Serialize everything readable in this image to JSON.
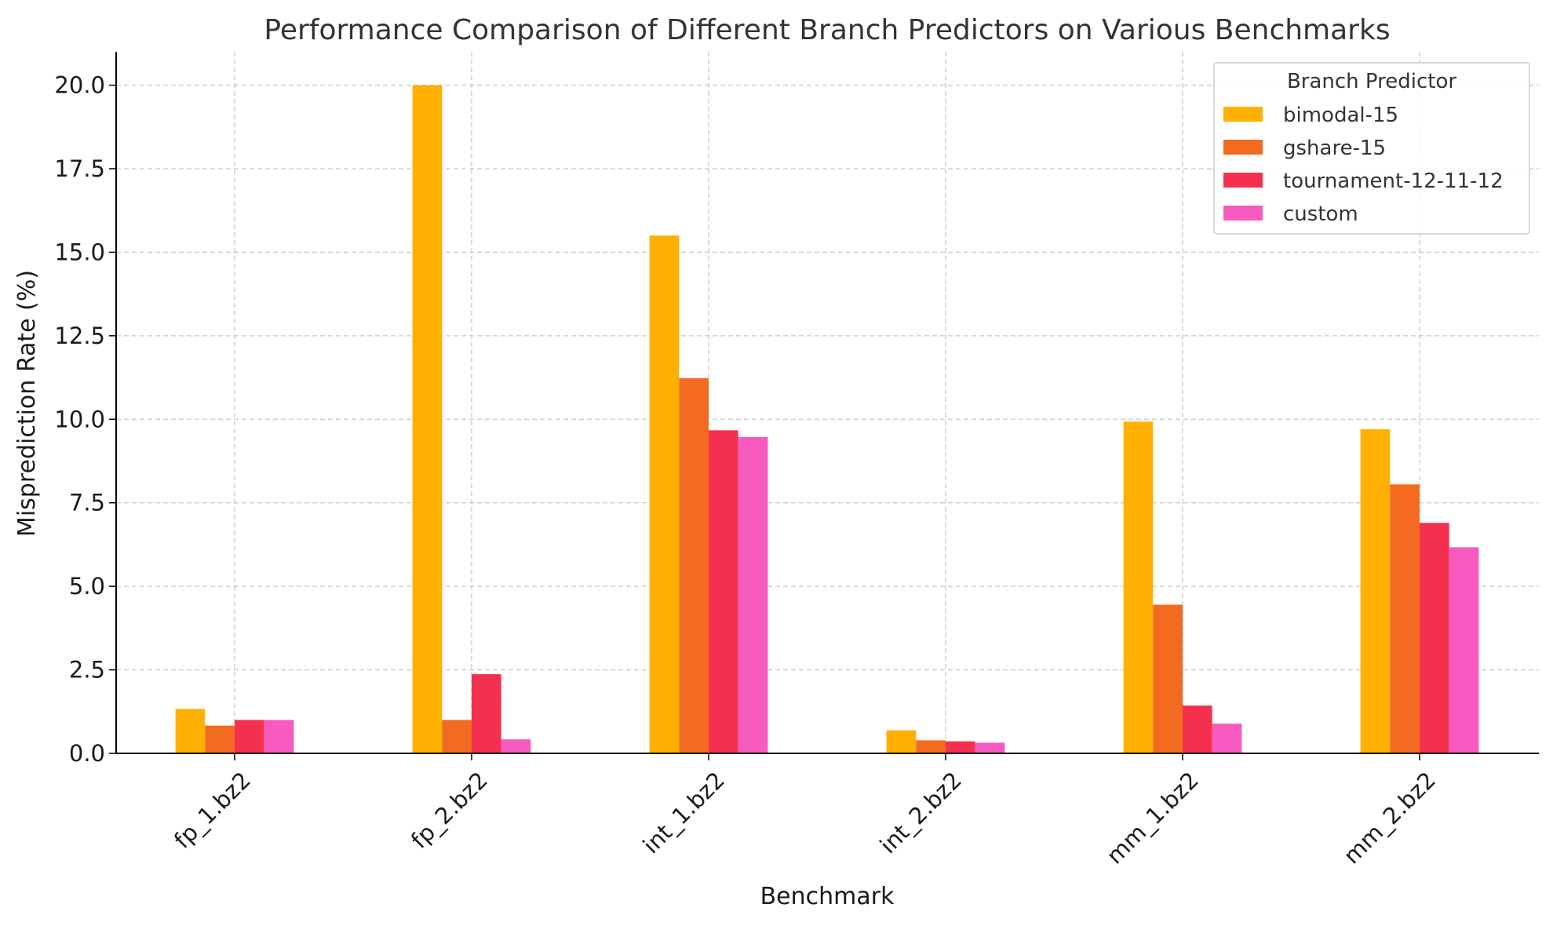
{
  "chart_data": {
    "type": "bar",
    "title": "Performance Comparison of Different Branch Predictors on Various Benchmarks",
    "xlabel": "Benchmark",
    "ylabel": "Misprediction Rate (%)",
    "categories": [
      "fp_1.bz2",
      "fp_2.bz2",
      "int_1.bz2",
      "int_2.bz2",
      "mm_1.bz2",
      "mm_2.bz2"
    ],
    "ylim": [
      0,
      21
    ],
    "yticks": [
      "0.0",
      "2.5",
      "5.0",
      "7.5",
      "10.0",
      "12.5",
      "15.0",
      "17.5",
      "20.0"
    ],
    "grid": true,
    "legend": {
      "title": "Branch Predictor",
      "placement": "top-right"
    },
    "series": [
      {
        "name": "bimodal-15",
        "color": "#FFB000",
        "values": [
          1.33,
          20.0,
          15.5,
          0.69,
          9.93,
          9.7
        ]
      },
      {
        "name": "gshare-15",
        "color": "#F26B21",
        "values": [
          0.83,
          1.0,
          11.23,
          0.39,
          4.45,
          8.05
        ]
      },
      {
        "name": "tournament-12-11-12",
        "color": "#F5304F",
        "values": [
          1.0,
          2.37,
          9.67,
          0.36,
          1.43,
          6.9
        ]
      },
      {
        "name": "custom",
        "color": "#F75BC0",
        "values": [
          1.0,
          0.42,
          9.47,
          0.32,
          0.89,
          6.17
        ]
      }
    ]
  }
}
